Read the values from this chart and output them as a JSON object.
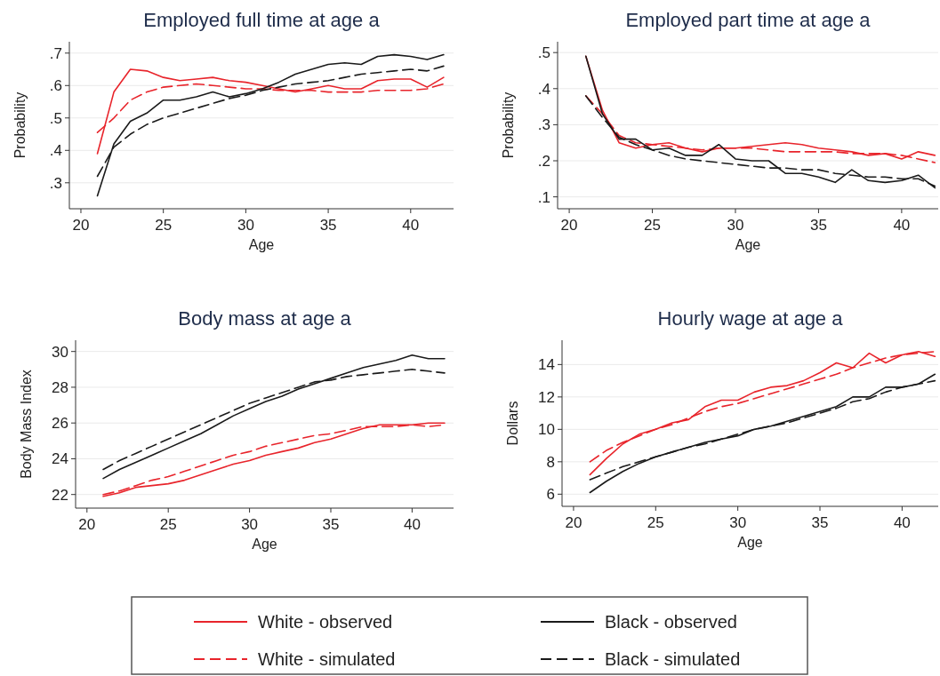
{
  "chart_data": [
    {
      "type": "line",
      "title": "Employed full time at age a",
      "xlabel": "Age",
      "ylabel": "Probability",
      "x": [
        21,
        22,
        23,
        24,
        25,
        26,
        27,
        28,
        29,
        30,
        31,
        32,
        33,
        34,
        35,
        36,
        37,
        38,
        39,
        40,
        41,
        42
      ],
      "xlim": [
        19.3,
        42.6
      ],
      "xticks": [
        20,
        25,
        30,
        35,
        40
      ],
      "ylim": [
        0.22,
        0.735
      ],
      "yticks": [
        {
          "value": 0.3,
          "label": ".3"
        },
        {
          "value": 0.4,
          "label": ".4"
        },
        {
          "value": 0.5,
          "label": ".5"
        },
        {
          "value": 0.6,
          "label": ".6"
        },
        {
          "value": 0.7,
          "label": ".7"
        }
      ],
      "grid": "y",
      "marker": "none",
      "series": [
        {
          "color": "#e8242b",
          "line_style": "solid",
          "values": [
            0.39,
            0.58,
            0.65,
            0.645,
            0.625,
            0.615,
            0.62,
            0.625,
            0.615,
            0.61,
            0.6,
            0.59,
            0.58,
            0.59,
            0.6,
            0.59,
            0.59,
            0.615,
            0.62,
            0.62,
            0.595,
            0.625
          ]
        },
        {
          "color": "#e8242b",
          "line_style": "dashed",
          "values": [
            0.455,
            0.5,
            0.555,
            0.58,
            0.595,
            0.6,
            0.605,
            0.6,
            0.595,
            0.59,
            0.59,
            0.585,
            0.585,
            0.585,
            0.58,
            0.58,
            0.58,
            0.585,
            0.585,
            0.585,
            0.59,
            0.605
          ]
        },
        {
          "color": "#1a1a1a",
          "line_style": "solid",
          "values": [
            0.26,
            0.42,
            0.49,
            0.515,
            0.555,
            0.555,
            0.565,
            0.58,
            0.565,
            0.575,
            0.59,
            0.61,
            0.635,
            0.65,
            0.665,
            0.67,
            0.665,
            0.69,
            0.695,
            0.69,
            0.68,
            0.695
          ]
        },
        {
          "color": "#1a1a1a",
          "line_style": "dashed",
          "values": [
            0.32,
            0.41,
            0.45,
            0.48,
            0.5,
            0.515,
            0.53,
            0.545,
            0.56,
            0.57,
            0.585,
            0.595,
            0.605,
            0.61,
            0.615,
            0.625,
            0.635,
            0.64,
            0.645,
            0.65,
            0.645,
            0.66
          ]
        }
      ]
    },
    {
      "type": "line",
      "title": "Employed part time at age a",
      "xlabel": "Age",
      "ylabel": "Probability",
      "x": [
        21,
        22,
        23,
        24,
        25,
        26,
        27,
        28,
        29,
        30,
        31,
        32,
        33,
        34,
        35,
        36,
        37,
        38,
        39,
        40,
        41,
        42
      ],
      "xlim": [
        19.3,
        42.2
      ],
      "xticks": [
        20,
        25,
        30,
        35,
        40
      ],
      "ylim": [
        0.067,
        0.53
      ],
      "yticks": [
        {
          "value": 0.1,
          "label": ".1"
        },
        {
          "value": 0.2,
          "label": ".2"
        },
        {
          "value": 0.3,
          "label": ".3"
        },
        {
          "value": 0.4,
          "label": ".4"
        },
        {
          "value": 0.5,
          "label": ".5"
        }
      ],
      "grid": "y",
      "marker": "none",
      "series": [
        {
          "color": "#e8242b",
          "line_style": "solid",
          "values": [
            0.49,
            0.34,
            0.25,
            0.235,
            0.245,
            0.25,
            0.235,
            0.225,
            0.235,
            0.235,
            0.24,
            0.245,
            0.25,
            0.245,
            0.235,
            0.23,
            0.225,
            0.215,
            0.22,
            0.205,
            0.225,
            0.215
          ]
        },
        {
          "color": "#e8242b",
          "line_style": "dashed",
          "values": [
            0.38,
            0.33,
            0.27,
            0.25,
            0.245,
            0.24,
            0.235,
            0.23,
            0.235,
            0.235,
            0.235,
            0.23,
            0.225,
            0.225,
            0.225,
            0.225,
            0.22,
            0.22,
            0.22,
            0.215,
            0.205,
            0.195
          ]
        },
        {
          "color": "#1a1a1a",
          "line_style": "solid",
          "values": [
            0.49,
            0.33,
            0.26,
            0.26,
            0.23,
            0.235,
            0.215,
            0.215,
            0.245,
            0.205,
            0.2,
            0.2,
            0.165,
            0.165,
            0.155,
            0.14,
            0.175,
            0.145,
            0.14,
            0.145,
            0.16,
            0.125
          ]
        },
        {
          "color": "#1a1a1a",
          "line_style": "dashed",
          "values": [
            0.38,
            0.32,
            0.265,
            0.245,
            0.23,
            0.215,
            0.205,
            0.2,
            0.195,
            0.19,
            0.185,
            0.18,
            0.18,
            0.175,
            0.175,
            0.165,
            0.16,
            0.155,
            0.155,
            0.15,
            0.15,
            0.13
          ]
        }
      ]
    },
    {
      "type": "line",
      "title": "Body mass at age a",
      "xlabel": "Age",
      "ylabel": "Body Mass Index",
      "x": [
        21,
        22,
        23,
        24,
        25,
        26,
        27,
        28,
        29,
        30,
        31,
        32,
        33,
        34,
        35,
        36,
        37,
        38,
        39,
        40,
        41,
        42
      ],
      "xlim": [
        19.3,
        42.55
      ],
      "xticks": [
        20,
        25,
        30,
        35,
        40
      ],
      "ylim": [
        21.24,
        30.63
      ],
      "yticks": [
        22,
        24,
        26,
        28,
        30
      ],
      "grid": "y",
      "legend": "bottom",
      "marker": "none",
      "series": [
        {
          "name": "White - observed",
          "color": "#e8242b",
          "line_style": "solid",
          "values": [
            21.9,
            22.1,
            22.4,
            22.5,
            22.6,
            22.8,
            23.1,
            23.4,
            23.7,
            23.9,
            24.2,
            24.4,
            24.6,
            24.9,
            25.1,
            25.4,
            25.7,
            25.9,
            25.9,
            25.9,
            26.0,
            26.0
          ]
        },
        {
          "name": "White - simulated",
          "color": "#e8242b",
          "line_style": "dashed",
          "values": [
            22.0,
            22.2,
            22.5,
            22.8,
            23.0,
            23.3,
            23.6,
            23.9,
            24.2,
            24.4,
            24.7,
            24.9,
            25.1,
            25.3,
            25.4,
            25.6,
            25.8,
            25.8,
            25.8,
            25.9,
            25.8,
            25.9
          ]
        },
        {
          "name": "Black - observed",
          "color": "#1a1a1a",
          "line_style": "solid",
          "values": [
            22.9,
            23.4,
            23.8,
            24.2,
            24.6,
            25.0,
            25.4,
            25.9,
            26.4,
            26.8,
            27.2,
            27.5,
            27.9,
            28.2,
            28.5,
            28.8,
            29.1,
            29.3,
            29.5,
            29.8,
            29.6,
            29.6
          ]
        },
        {
          "name": "Black - simulated",
          "color": "#1a1a1a",
          "line_style": "dashed",
          "values": [
            23.4,
            23.9,
            24.3,
            24.7,
            25.1,
            25.5,
            25.9,
            26.3,
            26.7,
            27.1,
            27.4,
            27.7,
            28.0,
            28.3,
            28.4,
            28.6,
            28.7,
            28.8,
            28.9,
            29.0,
            28.9,
            28.8
          ]
        }
      ]
    },
    {
      "type": "line",
      "title": "Hourly wage at age a",
      "xlabel": "Age",
      "ylabel": "Dollars",
      "x": [
        21,
        22,
        23,
        24,
        25,
        26,
        27,
        28,
        29,
        30,
        31,
        32,
        33,
        34,
        35,
        36,
        37,
        38,
        39,
        40,
        41,
        42
      ],
      "xlim": [
        19.3,
        42.2
      ],
      "xticks": [
        20,
        25,
        30,
        35,
        40
      ],
      "ylim": [
        5.25,
        15.5
      ],
      "yticks": [
        6,
        8,
        10,
        12,
        14
      ],
      "grid": "y",
      "marker": "none",
      "series": [
        {
          "color": "#e8242b",
          "line_style": "solid",
          "values": [
            7.2,
            8.2,
            9.1,
            9.7,
            10.0,
            10.4,
            10.6,
            11.4,
            11.8,
            11.8,
            12.3,
            12.6,
            12.7,
            13.0,
            13.5,
            14.1,
            13.8,
            14.7,
            14.1,
            14.6,
            14.8,
            14.5
          ]
        },
        {
          "color": "#e8242b",
          "line_style": "dashed",
          "values": [
            8.0,
            8.7,
            9.2,
            9.6,
            10.0,
            10.3,
            10.7,
            11.1,
            11.4,
            11.6,
            11.9,
            12.2,
            12.5,
            12.8,
            13.1,
            13.4,
            13.8,
            14.1,
            14.4,
            14.6,
            14.7,
            14.8
          ]
        },
        {
          "color": "#1a1a1a",
          "line_style": "solid",
          "values": [
            6.1,
            6.8,
            7.4,
            7.9,
            8.3,
            8.6,
            8.9,
            9.2,
            9.4,
            9.6,
            10.0,
            10.2,
            10.5,
            10.8,
            11.1,
            11.4,
            12.0,
            12.0,
            12.6,
            12.6,
            12.8,
            13.4
          ]
        },
        {
          "color": "#1a1a1a",
          "line_style": "dashed",
          "values": [
            6.9,
            7.3,
            7.7,
            8.0,
            8.3,
            8.6,
            8.9,
            9.1,
            9.4,
            9.7,
            10.0,
            10.2,
            10.4,
            10.7,
            11.0,
            11.3,
            11.7,
            11.9,
            12.3,
            12.6,
            12.8,
            13.0
          ]
        }
      ]
    }
  ]
}
